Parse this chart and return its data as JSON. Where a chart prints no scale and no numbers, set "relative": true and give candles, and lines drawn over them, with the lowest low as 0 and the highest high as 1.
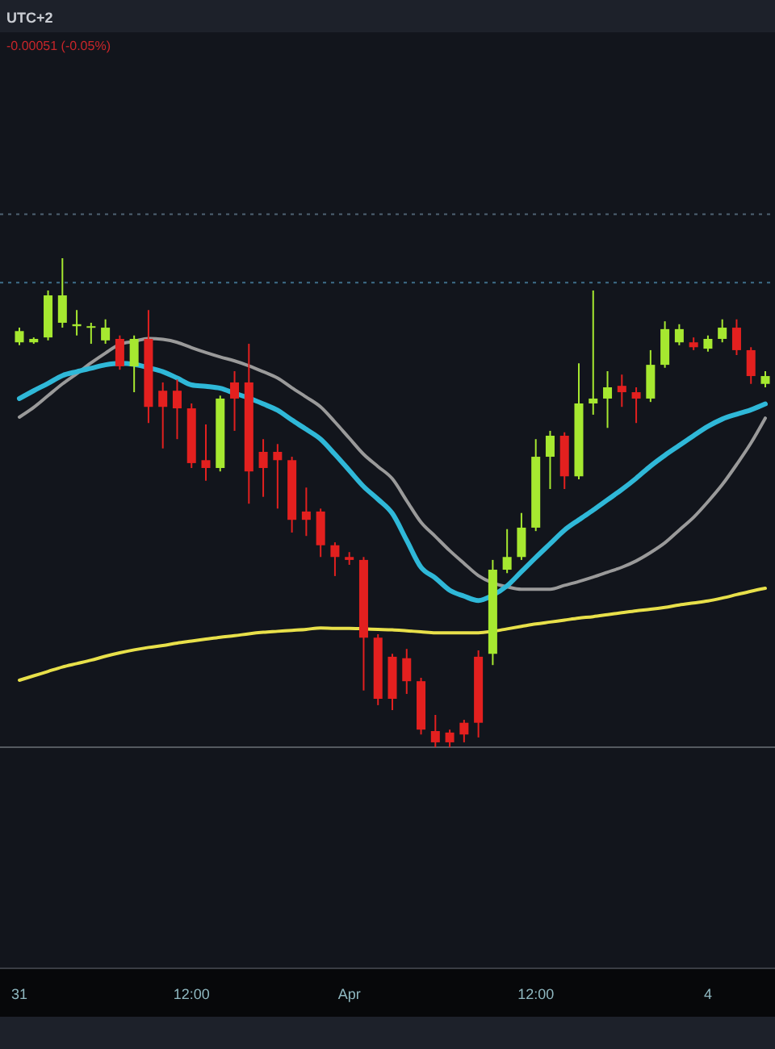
{
  "chart_data": {
    "type": "candlestick",
    "relative": true,
    "annotations": [
      "UTC+2",
      "-0.00051 (-0.05%)"
    ],
    "categories": [
      "31",
      null,
      null,
      null,
      null,
      null,
      null,
      null,
      null,
      null,
      null,
      null,
      "12:00",
      null,
      null,
      null,
      null,
      null,
      null,
      null,
      null,
      null,
      null,
      "Apr",
      null,
      null,
      null,
      null,
      null,
      null,
      null,
      null,
      null,
      null,
      null,
      null,
      "12:00",
      null,
      null,
      null,
      null,
      null,
      null,
      null,
      null,
      null,
      null,
      null,
      "4",
      null,
      null,
      null,
      null
    ],
    "ohlc": [
      [
        0.828,
        0.858,
        0.822,
        0.851
      ],
      [
        0.828,
        0.838,
        0.825,
        0.835
      ],
      [
        0.838,
        0.934,
        0.832,
        0.924
      ],
      [
        0.868,
        1.0,
        0.858,
        0.924
      ],
      [
        0.861,
        0.894,
        0.842,
        0.865
      ],
      [
        0.858,
        0.868,
        0.825,
        0.861
      ],
      [
        0.832,
        0.875,
        0.825,
        0.858
      ],
      [
        0.835,
        0.842,
        0.772,
        0.779
      ],
      [
        0.779,
        0.842,
        0.726,
        0.835
      ],
      [
        0.835,
        0.894,
        0.663,
        0.696
      ],
      [
        0.729,
        0.746,
        0.611,
        0.696
      ],
      [
        0.729,
        0.752,
        0.63,
        0.693
      ],
      [
        0.693,
        0.703,
        0.571,
        0.581
      ],
      [
        0.587,
        0.66,
        0.545,
        0.571
      ],
      [
        0.571,
        0.719,
        0.564,
        0.713
      ],
      [
        0.746,
        0.769,
        0.647,
        0.713
      ],
      [
        0.746,
        0.825,
        0.498,
        0.564
      ],
      [
        0.604,
        0.63,
        0.512,
        0.571
      ],
      [
        0.604,
        0.62,
        0.488,
        0.587
      ],
      [
        0.587,
        0.594,
        0.439,
        0.465
      ],
      [
        0.482,
        0.531,
        0.432,
        0.465
      ],
      [
        0.482,
        0.488,
        0.389,
        0.413
      ],
      [
        0.413,
        0.419,
        0.35,
        0.389
      ],
      [
        0.389,
        0.399,
        0.373,
        0.383
      ],
      [
        0.383,
        0.389,
        0.116,
        0.224
      ],
      [
        0.224,
        0.231,
        0.086,
        0.099
      ],
      [
        0.185,
        0.191,
        0.076,
        0.099
      ],
      [
        0.182,
        0.201,
        0.109,
        0.135
      ],
      [
        0.135,
        0.142,
        0.026,
        0.036
      ],
      [
        0.033,
        0.066,
        0,
        0.01
      ],
      [
        0.03,
        0.036,
        0,
        0.01
      ],
      [
        0.05,
        0.056,
        0.01,
        0.026
      ],
      [
        0.185,
        0.198,
        0.02,
        0.05
      ],
      [
        0.191,
        0.383,
        0.168,
        0.363
      ],
      [
        0.363,
        0.446,
        0.356,
        0.389
      ],
      [
        0.389,
        0.479,
        0.383,
        0.449
      ],
      [
        0.449,
        0.63,
        0.442,
        0.594
      ],
      [
        0.594,
        0.647,
        0.528,
        0.637
      ],
      [
        0.637,
        0.644,
        0.528,
        0.554
      ],
      [
        0.554,
        0.785,
        0.548,
        0.703
      ],
      [
        0.703,
        0.934,
        0.68,
        0.713
      ],
      [
        0.713,
        0.769,
        0.653,
        0.736
      ],
      [
        0.739,
        0.762,
        0.696,
        0.726
      ],
      [
        0.726,
        0.736,
        0.663,
        0.713
      ],
      [
        0.713,
        0.812,
        0.706,
        0.782
      ],
      [
        0.782,
        0.871,
        0.776,
        0.855
      ],
      [
        0.828,
        0.865,
        0.822,
        0.855
      ],
      [
        0.828,
        0.838,
        0.812,
        0.818
      ],
      [
        0.815,
        0.842,
        0.809,
        0.835
      ],
      [
        0.835,
        0.875,
        0.828,
        0.858
      ],
      [
        0.858,
        0.875,
        0.802,
        0.812
      ],
      [
        0.812,
        0.818,
        0.743,
        0.759
      ],
      [
        0.743,
        0.769,
        0.736,
        0.759
      ]
    ],
    "colors": [
      "#a6e830",
      "#a6e830",
      "#a6e830",
      "#a6e830",
      "#a6e830",
      "#a6e830",
      "#a6e830",
      "#e3201f",
      "#a6e830",
      "#e3201f",
      "#e3201f",
      "#e3201f",
      "#e3201f",
      "#e3201f",
      "#a6e830",
      "#e3201f",
      "#e3201f",
      "#e3201f",
      "#e3201f",
      "#e3201f",
      "#e3201f",
      "#e3201f",
      "#e3201f",
      "#e3201f",
      "#e3201f",
      "#e3201f",
      "#e3201f",
      "#e3201f",
      "#e3201f",
      "#e3201f",
      "#e3201f",
      "#e3201f",
      "#e3201f",
      "#a6e830",
      "#a6e830",
      "#a6e830",
      "#a6e830",
      "#a6e830",
      "#e3201f",
      "#a6e830",
      "#a6e830",
      "#a6e830",
      "#e3201f",
      "#e3201f",
      "#a6e830",
      "#a6e830",
      "#a6e830",
      "#e3201f",
      "#a6e830",
      "#a6e830",
      "#e3201f",
      "#e3201f",
      "#a6e830"
    ],
    "series": [
      {
        "type": "line",
        "color": "#9a9a9a",
        "values": [
          0.675,
          0.695,
          0.719,
          0.743,
          0.764,
          0.786,
          0.806,
          0.824,
          0.83,
          0.836,
          0.834,
          0.828,
          0.817,
          0.807,
          0.798,
          0.79,
          0.78,
          0.768,
          0.755,
          0.735,
          0.716,
          0.696,
          0.665,
          0.632,
          0.599,
          0.574,
          0.549,
          0.504,
          0.46,
          0.431,
          0.402,
          0.376,
          0.351,
          0.336,
          0.328,
          0.323,
          0.323,
          0.323,
          0.331,
          0.339,
          0.348,
          0.358,
          0.368,
          0.381,
          0.398,
          0.418,
          0.444,
          0.47,
          0.502,
          0.537,
          0.578,
          0.622,
          0.673
        ]
      },
      {
        "type": "line",
        "color": "#2fb8d8",
        "values": [
          0.713,
          0.729,
          0.744,
          0.76,
          0.768,
          0.775,
          0.782,
          0.785,
          0.783,
          0.776,
          0.768,
          0.755,
          0.741,
          0.738,
          0.734,
          0.724,
          0.714,
          0.702,
          0.689,
          0.669,
          0.65,
          0.63,
          0.599,
          0.566,
          0.533,
          0.507,
          0.478,
          0.423,
          0.368,
          0.346,
          0.321,
          0.309,
          0.3,
          0.311,
          0.33,
          0.359,
          0.388,
          0.416,
          0.444,
          0.465,
          0.485,
          0.506,
          0.527,
          0.55,
          0.575,
          0.597,
          0.617,
          0.637,
          0.656,
          0.671,
          0.681,
          0.69,
          0.702
        ]
      },
      {
        "type": "line",
        "color": "#e8e04a",
        "values": [
          0.137,
          0.146,
          0.155,
          0.164,
          0.171,
          0.178,
          0.186,
          0.193,
          0.199,
          0.204,
          0.208,
          0.213,
          0.217,
          0.221,
          0.225,
          0.228,
          0.232,
          0.235,
          0.237,
          0.239,
          0.241,
          0.244,
          0.243,
          0.243,
          0.242,
          0.241,
          0.24,
          0.238,
          0.236,
          0.234,
          0.234,
          0.234,
          0.234,
          0.237,
          0.242,
          0.247,
          0.252,
          0.256,
          0.26,
          0.264,
          0.267,
          0.271,
          0.275,
          0.279,
          0.282,
          0.286,
          0.291,
          0.295,
          0.299,
          0.305,
          0.312,
          0.319,
          0.325
        ]
      }
    ],
    "ref_lines": [
      {
        "axis": "y",
        "value": 1.09,
        "color": "#4f6373",
        "line_style": "dotted"
      },
      {
        "axis": "y",
        "value": 0.95,
        "color": "#3f6f8a",
        "line_style": "dotted"
      },
      {
        "axis": "y",
        "value": 0,
        "color": "#555a60",
        "line_style": "solid"
      }
    ]
  }
}
